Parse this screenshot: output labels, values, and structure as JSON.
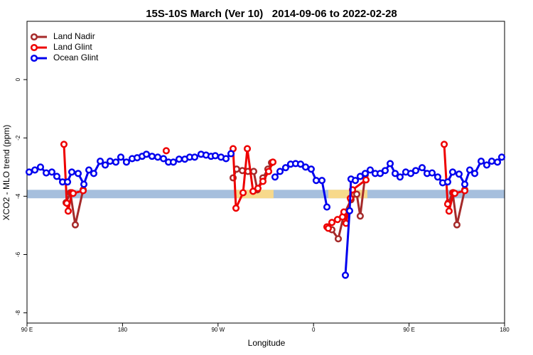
{
  "chart_data": {
    "type": "line",
    "title": "15S-10S March (Ver 10)   2014-09-06 to 2022-02-28",
    "x_label": "Longitude",
    "y_label": "XCO2 - MLO trend (ppm)",
    "xlim": [
      90,
      540
    ],
    "xticks": [
      {
        "value": 90,
        "label": "90 E"
      },
      180,
      {
        "value": 270,
        "label": "90 W"
      },
      {
        "value": 360,
        "label": "0"
      },
      {
        "value": 450,
        "label": "90 E"
      },
      {
        "value": 540,
        "label": "180"
      }
    ],
    "ylim": [
      -8.35,
      2.0
    ],
    "yticks": [
      0,
      -2,
      -4,
      -6,
      -8
    ],
    "legend": "top-left",
    "band": {
      "y": [
        -4.07,
        -3.78
      ],
      "color": "#a6bfdd",
      "highlight_color": "#f7d98b",
      "highlights": [
        [
          285.5,
          322.3
        ],
        [
          373.9,
          410.7
        ]
      ]
    },
    "series": [
      {
        "name": "Land Nadir",
        "color": "#a52a2a",
        "x": [
          126.8,
          130.8,
          135.5,
          142.9,
          null,
          284.2,
          287.5,
          292.9,
          298.2,
          303.6,
          307,
          312.3,
          317,
          320.4,
          null,
          373.2,
          377.3,
          383.3,
          388.6,
          395.3,
          400.7,
          404,
          408.7,
          null,
          487.1,
          491.1,
          495.1,
          502.5
        ],
        "values": [
          -4.22,
          -3.88,
          -4.98,
          -3.78,
          null,
          -3.37,
          -3.07,
          -3.12,
          -3.15,
          -3.15,
          -3.78,
          -3.37,
          -3.07,
          -2.85,
          null,
          -5.05,
          -5.15,
          -5.46,
          -4.63,
          -4.12,
          -3.93,
          -4.68,
          -3.27,
          null,
          -4.22,
          -3.88,
          -4.98,
          -3.78
        ]
      },
      {
        "name": "Land Glint",
        "color": "#ee0000",
        "x": [
          124.8,
          127.5,
          128.8,
          132.2,
          133.5,
          142.9,
          null,
          221.2,
          null,
          284.2,
          286.9,
          293.6,
          297.6,
          303,
          307.6,
          312.3,
          317.7,
          321.7,
          null,
          372.6,
          373.9,
          377.3,
          382.6,
          387.3,
          388.6,
          390.6,
          394.7,
          396.7,
          409.4,
          null,
          483.1,
          486.4,
          487.7,
          491.8,
          493.1,
          502.5
        ],
        "values": [
          -2.22,
          -4.24,
          -4.51,
          -3.88,
          -3.9,
          -3.81,
          null,
          -2.44,
          null,
          -2.37,
          -4.41,
          -3.88,
          -2.37,
          -3.83,
          -3.73,
          -3.49,
          -3.15,
          -2.83,
          null,
          -5.05,
          -5.1,
          -4.9,
          -4.8,
          -4.71,
          -4.54,
          -4.93,
          -4.07,
          -3.78,
          -3.44,
          null,
          -2.22,
          -4.27,
          -4.51,
          -3.88,
          -3.9,
          -3.81
        ]
      },
      {
        "name": "Ocean Glint",
        "color": "#0000ee",
        "x": [
          92,
          97.4,
          102.7,
          108.1,
          113.4,
          118.1,
          123.5,
          128.2,
          132.2,
          138.2,
          143.6,
          148.3,
          152.9,
          159,
          163.7,
          168.3,
          173.7,
          178.4,
          183.7,
          189.1,
          193.8,
          198.5,
          202.5,
          207.8,
          213.2,
          218.6,
          223.3,
          227.9,
          233.3,
          238.7,
          243.3,
          248,
          254,
          258.7,
          263.4,
          267.4,
          272.8,
          277.5,
          282.2,
          null,
          323.7,
          328.4,
          333.7,
          338.4,
          343.1,
          347.8,
          352.5,
          357.8,
          362.5,
          367.9,
          372.6,
          null,
          390,
          394,
          395.3,
          399.4,
          404,
          408.7,
          413.4,
          418.1,
          422.8,
          427.5,
          432.2,
          436.9,
          441.5,
          446.9,
          451.6,
          456.3,
          462.3,
          467,
          471.7,
          477,
          481.7,
          486.4,
          491.1,
          497.1,
          502.5,
          507.2,
          511.9,
          517.9,
          523.2,
          527.9,
          533.3,
          537.3
        ],
        "values": [
          -3.17,
          -3.1,
          -3.0,
          -3.2,
          -3.17,
          -3.32,
          -3.51,
          -3.51,
          -3.17,
          -3.22,
          -3.59,
          -3.1,
          -3.22,
          -2.8,
          -2.93,
          -2.8,
          -2.83,
          -2.66,
          -2.83,
          -2.71,
          -2.68,
          -2.63,
          -2.56,
          -2.63,
          -2.66,
          -2.71,
          -2.83,
          -2.83,
          -2.73,
          -2.73,
          -2.66,
          -2.66,
          -2.56,
          -2.59,
          -2.63,
          -2.61,
          -2.66,
          -2.71,
          -2.54,
          null,
          -3.34,
          -3.15,
          -3.02,
          -2.9,
          -2.88,
          -2.9,
          -3.0,
          -3.07,
          -3.46,
          -3.46,
          -4.37,
          null,
          -6.71,
          -4.5,
          -3.41,
          -3.46,
          -3.32,
          -3.22,
          -3.1,
          -3.22,
          -3.22,
          -3.12,
          -2.88,
          -3.22,
          -3.34,
          -3.17,
          -3.22,
          -3.12,
          -3.02,
          -3.22,
          -3.2,
          -3.34,
          -3.54,
          -3.51,
          -3.17,
          -3.24,
          -3.59,
          -3.1,
          -3.22,
          -2.8,
          -2.93,
          -2.8,
          -2.83,
          -2.66
        ]
      }
    ]
  }
}
